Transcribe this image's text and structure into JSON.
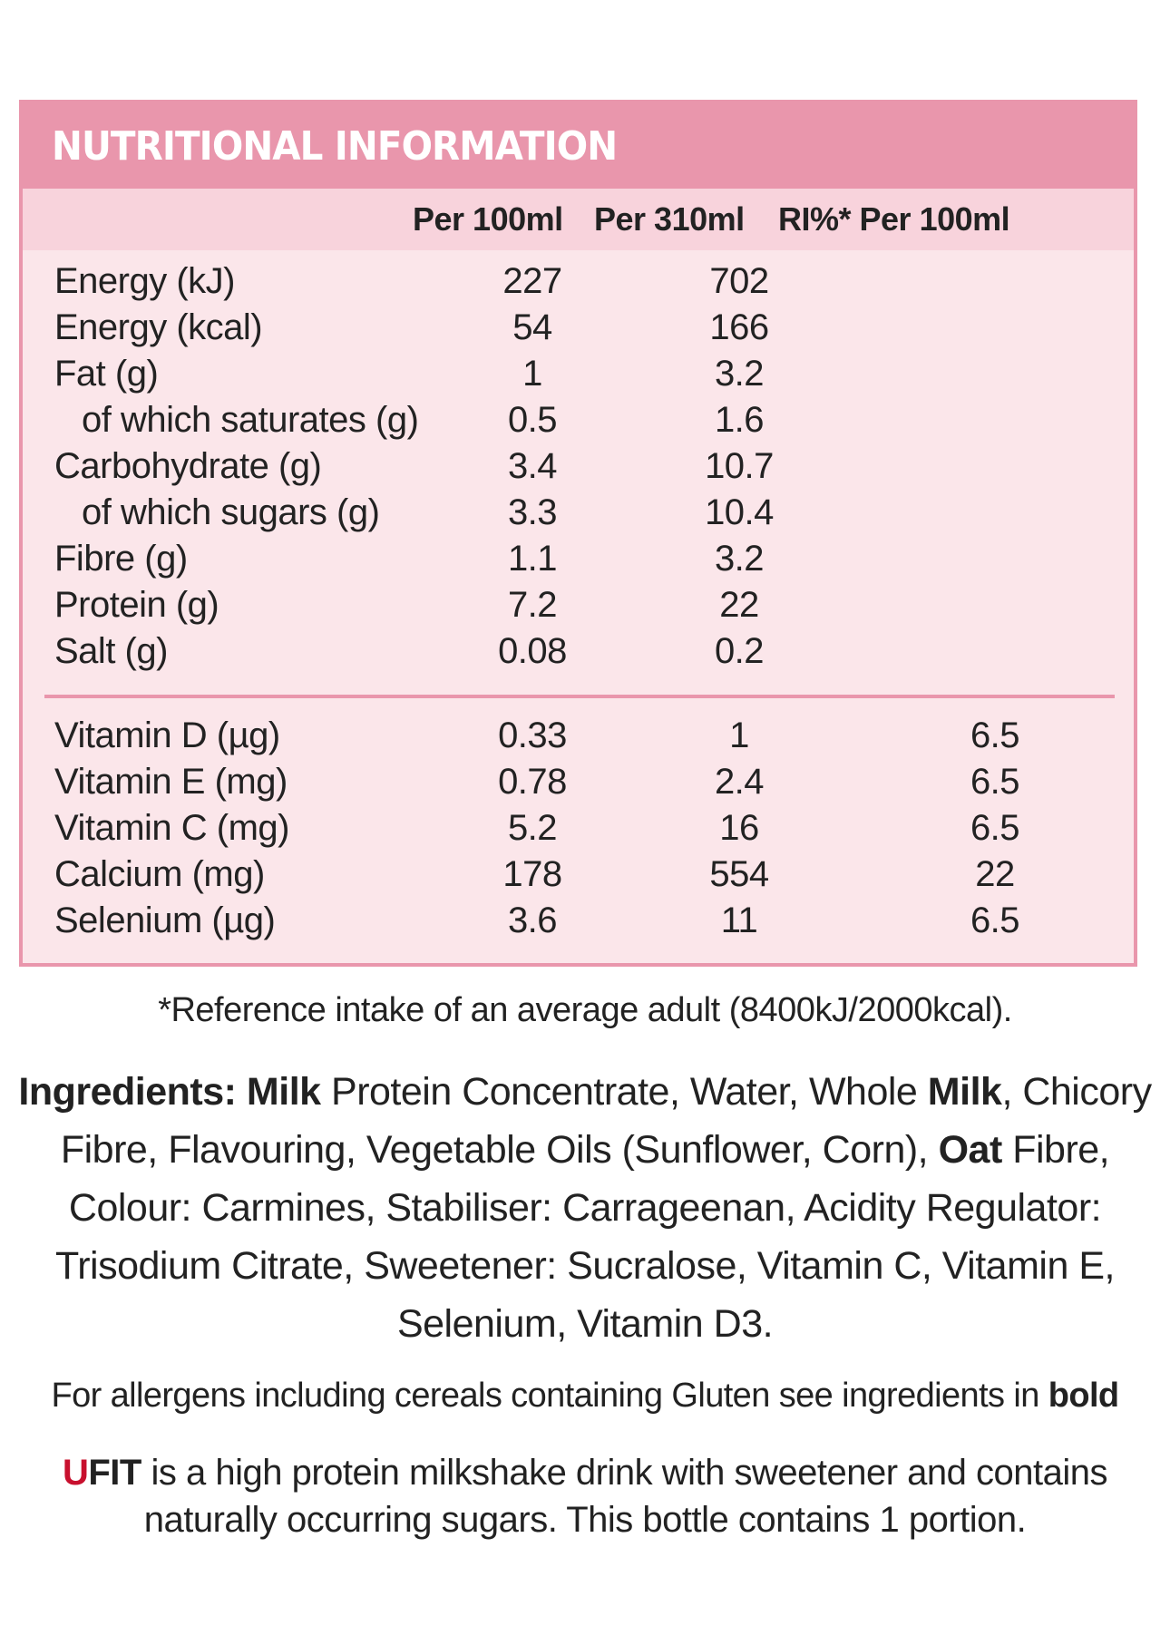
{
  "panel": {
    "title": "NUTRITIONAL INFORMATION",
    "columns": [
      "Per 100ml",
      "Per 310ml",
      "RI%* Per 100ml"
    ],
    "macros": [
      {
        "name": "Energy (kJ)",
        "per100": "227",
        "per310": "702",
        "ri": "",
        "indent": false
      },
      {
        "name": "Energy (kcal)",
        "per100": "54",
        "per310": "166",
        "ri": "",
        "indent": false
      },
      {
        "name": "Fat (g)",
        "per100": "1",
        "per310": "3.2",
        "ri": "",
        "indent": false
      },
      {
        "name": "of which saturates (g)",
        "per100": "0.5",
        "per310": "1.6",
        "ri": "",
        "indent": true
      },
      {
        "name": "Carbohydrate (g)",
        "per100": "3.4",
        "per310": "10.7",
        "ri": "",
        "indent": false
      },
      {
        "name": "of which sugars (g)",
        "per100": "3.3",
        "per310": "10.4",
        "ri": "",
        "indent": true
      },
      {
        "name": "Fibre (g)",
        "per100": "1.1",
        "per310": "3.2",
        "ri": "",
        "indent": false
      },
      {
        "name": "Protein (g)",
        "per100": "7.2",
        "per310": "22",
        "ri": "",
        "indent": false
      },
      {
        "name": "Salt (g)",
        "per100": "0.08",
        "per310": "0.2",
        "ri": "",
        "indent": false
      }
    ],
    "vitamins": [
      {
        "name": "Vitamin D (µg)",
        "per100": "0.33",
        "per310": "1",
        "ri": "6.5"
      },
      {
        "name": "Vitamin E (mg)",
        "per100": "0.78",
        "per310": "2.4",
        "ri": "6.5"
      },
      {
        "name": "Vitamin C (mg)",
        "per100": "5.2",
        "per310": "16",
        "ri": "6.5"
      },
      {
        "name": "Calcium (mg)",
        "per100": "178",
        "per310": "554",
        "ri": "22"
      },
      {
        "name": "Selenium (µg)",
        "per100": "3.6",
        "per310": "11",
        "ri": "6.5"
      }
    ]
  },
  "footnote": "*Reference intake of an average adult (8400kJ/2000kcal).",
  "ingredients": {
    "label": "Ingredients:",
    "milk1": "Milk",
    "part1": " Protein Concentrate, Water, Whole ",
    "milk2": "Milk",
    "part2": ", Chicory Fibre, Flavouring, Vegetable Oils (Sunflower, Corn), ",
    "oat": "Oat",
    "part3": " Fibre, Colour: Carmines, Stabiliser: Carrageenan, Acidity Regulator: Trisodium Citrate, Sweetener: Sucralose, Vitamin C, Vitamin E, Selenium, Vitamin D3."
  },
  "allergens": {
    "text": "For allergens including cereals containing Gluten see ingredients in ",
    "bold": "bold"
  },
  "ufit": {
    "brand_u": "U",
    "brand_rest": "FIT",
    "text": " is a high protein milkshake drink with sweetener and contains naturally occurring sugars. This bottle contains 1 portion."
  },
  "colors": {
    "panel_border": "#e996ac",
    "panel_bg": "#fbe6ea",
    "header_bg": "#f8d3dc",
    "brand_red": "#c8102e"
  }
}
